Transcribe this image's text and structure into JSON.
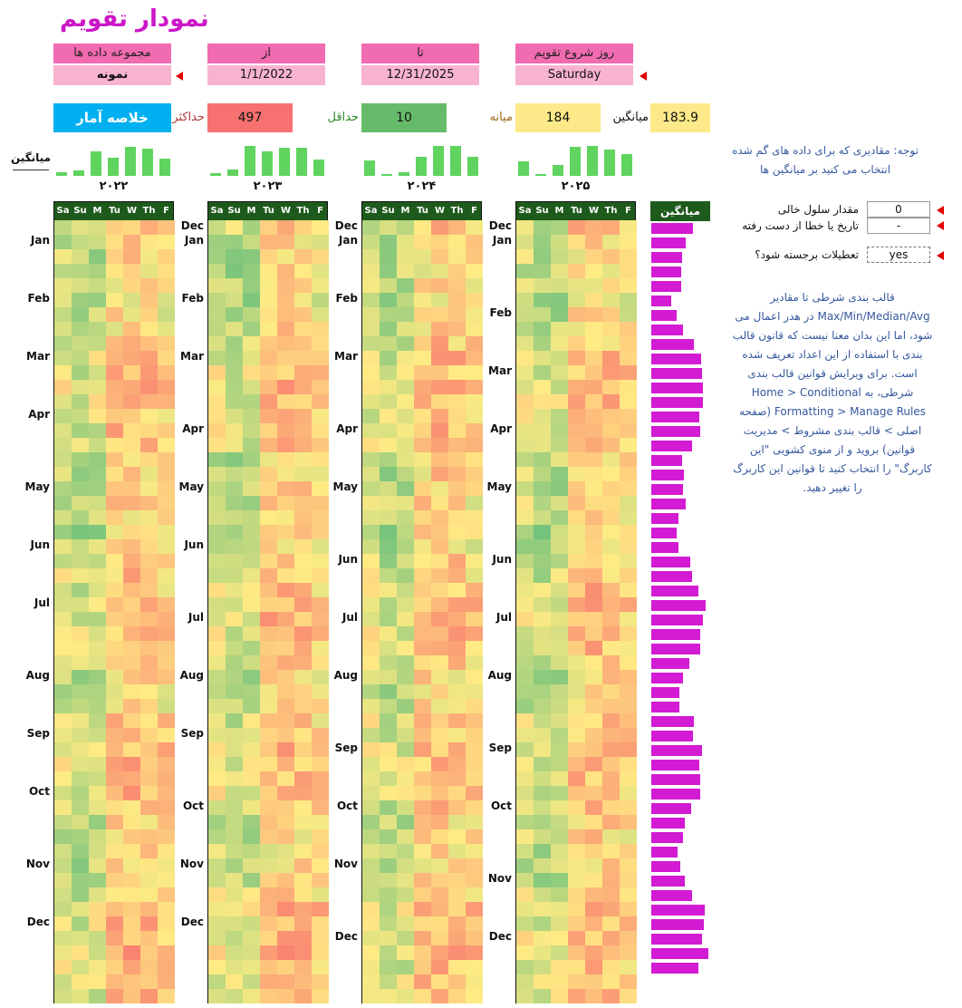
{
  "title": "نمودار تقویم",
  "controls": {
    "dataset_label": "مجموعه داده ها",
    "dataset_value": "نمونه",
    "from_label": "از",
    "from_value": "1/1/2022",
    "to_label": "تا",
    "to_value": "12/31/2025",
    "week_start_label": "روز شروع تقویم",
    "week_start_value": "Saturday"
  },
  "stats": {
    "summary_button": "خلاصه آمار",
    "max_label": "حداکثر",
    "max_value": "497",
    "min_label": "حداقل",
    "min_value": "10",
    "median_label": "میانه",
    "median_value": "184",
    "mean_label": "میانگین",
    "mean_value": "183.9",
    "max_color": "#f87171",
    "min_color": "#66bb6a",
    "median_color": "#fde98a"
  },
  "sparkline_label": "میانگین",
  "note": "توجه: مقادیری که برای داده های گم شده انتخاب می کنید بر میانگین ها",
  "options": {
    "blank_label": "مقدار سلول خالی",
    "blank_value": "0",
    "error_label": "تاریخ یا خطا از دست رفته",
    "error_value": "-",
    "highlight_label": "تعطیلات برجسته شود؟",
    "highlight_value": "yes"
  },
  "info_text": "قالب بندی شرطی تا مقادیر Max/Min/Median/Avg در هدر اعمال می شود، اما این بدان معنا نیست که قانون قالب بندی با استفاده از این اعداد تعریف شده است. برای ویرایش قوانین قالب بندی شرطی، به Home > Conditional Formatting > Manage Rules (صفحه اصلی > قالب بندی مشروط > مدیریت قوانین) بروید و از منوی کشویی \"این کاربرگ\" را انتخاب کنید تا قوانین این کاربرگ را تغییر دهید.",
  "weekdays": [
    "Sa",
    "Su",
    "M",
    "Tu",
    "W",
    "Th",
    "F"
  ],
  "avg_header": "میانگین",
  "years": [
    {
      "label": "۲۰۲۲",
      "spark": [
        0.12,
        0.18,
        0.78,
        0.58,
        0.95,
        0.88,
        0.55
      ],
      "months": [
        "Jan",
        "Feb",
        "Mar",
        "Apr",
        "May",
        "Jun",
        "Jul",
        "Aug",
        "Sep",
        "Oct",
        "Nov",
        "Dec"
      ]
    },
    {
      "label": "۲۰۲۳",
      "spark": [
        0.08,
        0.22,
        0.96,
        0.78,
        0.92,
        0.9,
        0.52
      ],
      "months": [
        "Dec",
        "Jan",
        "Feb",
        "Mar",
        "Apr",
        "May",
        "Jun",
        "Jul",
        "Aug",
        "Sep",
        "Oct",
        "Nov",
        "Dec"
      ]
    },
    {
      "label": "۲۰۲۴",
      "spark": [
        0.5,
        0.06,
        0.12,
        0.62,
        0.98,
        0.96,
        0.62
      ],
      "months": [
        "Dec",
        "Jan",
        "Feb",
        "Mar",
        "Apr",
        "May",
        "Jun",
        "Jul",
        "Aug",
        "Sep",
        "Oct",
        "Nov",
        "Dec"
      ]
    },
    {
      "label": "۲۰۲۵",
      "spark": [
        0.46,
        0.06,
        0.36,
        0.93,
        0.98,
        0.85,
        0.7
      ],
      "months": [
        "Dec",
        "Jan",
        "Feb",
        "Mar",
        "Apr",
        "May",
        "Jun",
        "Jul",
        "Aug",
        "Sep",
        "Oct",
        "Nov",
        "Dec"
      ]
    }
  ],
  "weekly_avg": [
    0.72,
    0.59,
    0.53,
    0.51,
    0.52,
    0.35,
    0.44,
    0.55,
    0.73,
    0.86,
    0.87,
    0.89,
    0.89,
    0.83,
    0.84,
    0.7,
    0.53,
    0.56,
    0.54,
    0.6,
    0.47,
    0.44,
    0.47,
    0.67,
    0.71,
    0.82,
    0.93,
    0.89,
    0.84,
    0.84,
    0.66,
    0.55,
    0.48,
    0.49,
    0.74,
    0.72,
    0.87,
    0.83,
    0.84,
    0.85,
    0.69,
    0.58,
    0.55,
    0.46,
    0.5,
    0.58,
    0.71,
    0.92,
    0.91,
    0.87,
    0.98,
    0.81
  ]
}
